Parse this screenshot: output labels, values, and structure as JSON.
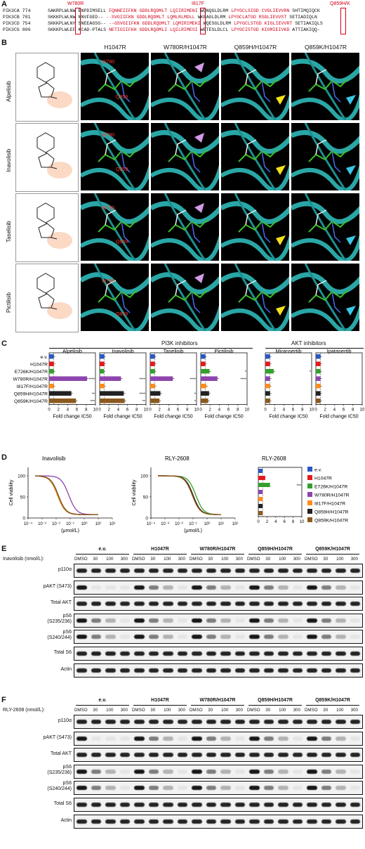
{
  "panels": [
    "A",
    "B",
    "C",
    "D",
    "E",
    "F"
  ],
  "alignment": {
    "mutations": [
      "W780R",
      "I817F",
      "Q859H/K"
    ],
    "rows": [
      {
        "name": "PIK3CA 774",
        "seq": "SAKRPLWLNW ENPDIMSELL FQNNEIIFKN GDDLRQDMLT LQIIRIMENI WQNQGLDLRM LPYGCLSIGD CVGLIEVVRN SHTIMQIQCK"
      },
      {
        "name": "PIK3CB 781",
        "seq": "SKKKPLWLNW NNVFGED-- --SVGIIFKN GDDLRQDMLT LQMLRLMDLL WKEAGLDLRM LPYGCLATGD RSGLIEVVST SETIADIQLN"
      },
      {
        "name": "PIK3CD 754",
        "seq": "SKKKPLWLNY SNEEAGSG-- --GSVGIIFKN GDDLRQDMLT LQMIRIMEKI WQESGLDLRM LPYGCLSTGD KIGLIEVVRT SETIAKIQLS"
      },
      {
        "name": "PIK3CG 806",
        "seq": "SKKKPLWLEF KCAD-PTALS NETIGIIFKH GDDLRQDMLI LQILRIMESI WETESLDLCL LPYGCISTGD KIGMIEIVKD ATTIAKIQQ-"
      }
    ]
  },
  "structures": {
    "columns": [
      "H1047R",
      "W780R/H1047R",
      "Q859H/H1047R",
      "Q859K/H1047R"
    ],
    "drugs": [
      "Alpelisib",
      "Inavolisib",
      "Taselisib",
      "Pictilisib"
    ],
    "residue_labels": [
      "W780",
      "Q859"
    ]
  },
  "panelC": {
    "group_pi3k": "PI3K inhibitors",
    "group_akt": "AKT inhibitors",
    "rows": [
      "e.v.",
      "H1047R",
      "E726K/H1047R",
      "W780R/H1047R",
      "I817F/H1047R",
      "Q859H/H1047R",
      "Q859K/H1047R"
    ],
    "xlabel": "Fold change IC50",
    "xticks": [
      "0",
      "2",
      "4",
      "6",
      "8",
      "10"
    ],
    "charts": [
      {
        "name": "Alpelisib",
        "values": [
          1,
          1,
          1,
          8.2,
          1,
          4.8,
          5.8
        ],
        "sig": [
          "",
          "",
          "",
          "****",
          "",
          "**",
          "***"
        ]
      },
      {
        "name": "Inavolisib",
        "values": [
          1,
          1,
          0.9,
          4.6,
          1,
          5.2,
          5.4
        ],
        "sig": [
          "",
          "",
          "",
          "****",
          "",
          "****",
          "**"
        ]
      },
      {
        "name": "Taselisib",
        "values": [
          1,
          1,
          1,
          4.9,
          1,
          2.2,
          2.0
        ],
        "sig": [
          "",
          "",
          "",
          "****",
          "",
          "*",
          "*"
        ]
      },
      {
        "name": "Pictilisib",
        "values": [
          1,
          1,
          1.9,
          3.6,
          1.2,
          1.8,
          1.6
        ],
        "sig": [
          "",
          "",
          "*",
          "****",
          "",
          "",
          ""
        ]
      },
      {
        "name": "Miransertib",
        "values": [
          1,
          1,
          1.8,
          1,
          1,
          1,
          1
        ],
        "sig": [
          "",
          "",
          "*",
          "",
          "",
          "",
          ""
        ]
      },
      {
        "name": "Ipatasertib",
        "values": [
          1,
          1,
          1,
          1,
          1,
          1,
          1
        ],
        "sig": [
          "",
          "",
          "",
          "",
          "",
          "",
          ""
        ]
      }
    ],
    "colors": [
      "#2a57c4",
      "#e31a1c",
      "#33a02c",
      "#8e44ad",
      "#ff8c1a",
      "#222222",
      "#8c5a1e"
    ]
  },
  "panelD": {
    "curves": [
      {
        "title": "Inavolisib",
        "ylabel": "Cell viability",
        "xlabel": "(μmol/L)",
        "yticks": [
          "0",
          "50",
          "100"
        ],
        "xticks": [
          "10⁻⁴",
          "10⁻³",
          "10⁻²",
          "10⁻¹",
          "10⁰",
          "10¹",
          "10²"
        ],
        "ic50_log": [
          -1.9,
          -1.9,
          -1.9,
          -1.1,
          -1.9,
          -1.85,
          -1.85
        ]
      },
      {
        "title": "RLY-2608",
        "ylabel": "Cell viability",
        "xlabel": "(μmol/L)",
        "yticks": [
          "0",
          "50",
          "100"
        ],
        "xticks": [
          "10⁻⁴",
          "10⁻³",
          "10⁻²",
          "10⁻¹",
          "10⁰",
          "10¹",
          "10²"
        ],
        "ic50_log": [
          -1.0,
          -1.05,
          -0.8,
          -1.0,
          -1.0,
          -1.0,
          -1.05
        ]
      }
    ],
    "bar": {
      "title": "RLY-2608",
      "values": [
        1,
        1.6,
        2.7,
        1,
        1,
        1,
        1
      ],
      "sig": [
        "",
        "",
        "***",
        "",
        "",
        "",
        ""
      ],
      "xticks": [
        "0",
        "2",
        "4",
        "6",
        "8",
        "10"
      ]
    },
    "legend": [
      "e.v.",
      "H1047R",
      "E726K/H1047R",
      "W780R/H1047R",
      "I817F/H1047R",
      "Q859H/H1047R",
      "Q859K/H1047R"
    ]
  },
  "panelE": {
    "drug_label": "Inavolisib (nmol/L):",
    "groups": [
      "e.v.",
      "H1047R",
      "W780R/H1047R",
      "Q859H/H1047R",
      "Q859K/H1047R"
    ],
    "lanes": [
      "DMSO",
      "30",
      "100",
      "300"
    ],
    "rows": [
      "p110α",
      "pAKT (S473)",
      "Total AKT",
      "pS6\n(S235/236)",
      "pS6\n(S240/244)",
      "Total S6",
      "Actin"
    ]
  },
  "panelF": {
    "drug_label": "RLY-2608 (nmol/L):",
    "groups": [
      "e.v.",
      "H1047R",
      "W780R/H1047R",
      "Q859H/H1047R",
      "Q859K/H1047R"
    ],
    "lanes": [
      "DMSO",
      "30",
      "100",
      "300"
    ],
    "rows": [
      "p110α",
      "pAKT (S473)",
      "Total AKT",
      "pS6\n(S235/236)",
      "pS6\n(S240/244)",
      "Total S6",
      "Actin"
    ]
  }
}
